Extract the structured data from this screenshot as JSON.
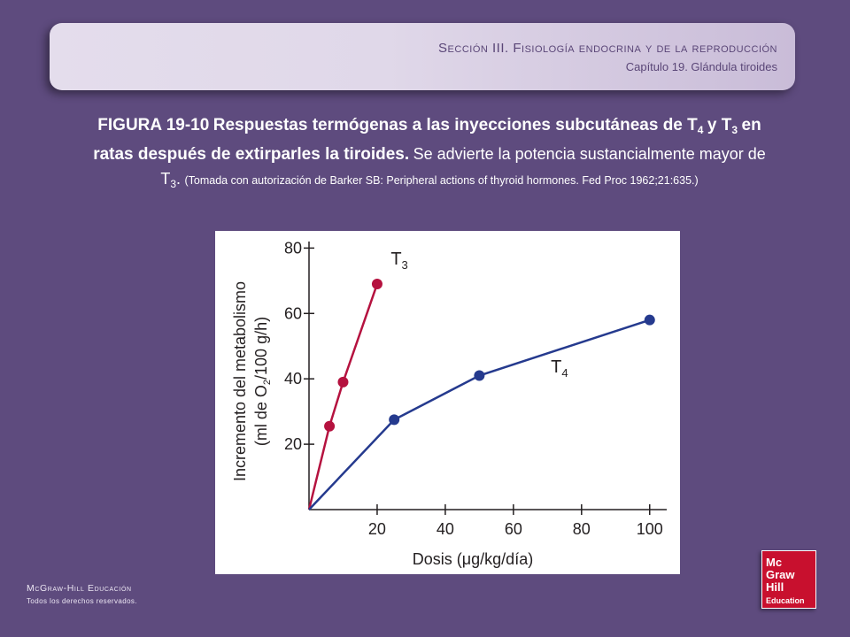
{
  "header": {
    "section_label": "Sección III.",
    "section_name": "Fisiología endocrina y de la reproducción",
    "chapter": "Capítulo 19.  Glándula tiroides"
  },
  "caption": {
    "figure_label": "FIGURA 19-10",
    "bold_part1": "Respuestas termógenas a las inyecciones subcutáneas de T",
    "bold_sub1": "4",
    "bold_part2": "y T",
    "bold_sub2": "3",
    "bold_part3": "en ratas después de extirparles la tiroides.",
    "normal_part1": "Se advierte la potencia sustancialmente mayor de T",
    "normal_sub": "3",
    "source": "(Tomada con autorización de Barker SB: Peripheral actions of thyroid hormones. Fed Proc 1962;21:635.)"
  },
  "chart_data": {
    "type": "line",
    "xlabel": "Dosis (μg/kg/día)",
    "ylabel_line1": "Incremento del metabolismo",
    "ylabel_line2_pre": "(ml de O",
    "ylabel_line2_sub": "2",
    "ylabel_line2_post": "/100 g/h)",
    "xlim": [
      0,
      105
    ],
    "ylim": [
      0,
      82
    ],
    "xticks": [
      20,
      40,
      60,
      80,
      100
    ],
    "yticks": [
      20,
      40,
      60,
      80
    ],
    "grid": false,
    "series": [
      {
        "name": "T",
        "name_sub": "3",
        "color": "#b5123f",
        "points": [
          [
            0,
            0
          ],
          [
            6,
            25.5
          ],
          [
            10,
            39
          ],
          [
            20,
            69
          ]
        ]
      },
      {
        "name": "T",
        "name_sub": "4",
        "color": "#253a8e",
        "points": [
          [
            0,
            0
          ],
          [
            25,
            27.5
          ],
          [
            50,
            41
          ],
          [
            100,
            58
          ]
        ]
      }
    ]
  },
  "footer": {
    "company": "McGraw-Hill Educación",
    "rights": "Todos los derechos reservados."
  },
  "logo": {
    "line1": "Mc",
    "line2": "Graw",
    "line3": "Hill",
    "line4": "Education",
    "color": "#c8102e"
  }
}
